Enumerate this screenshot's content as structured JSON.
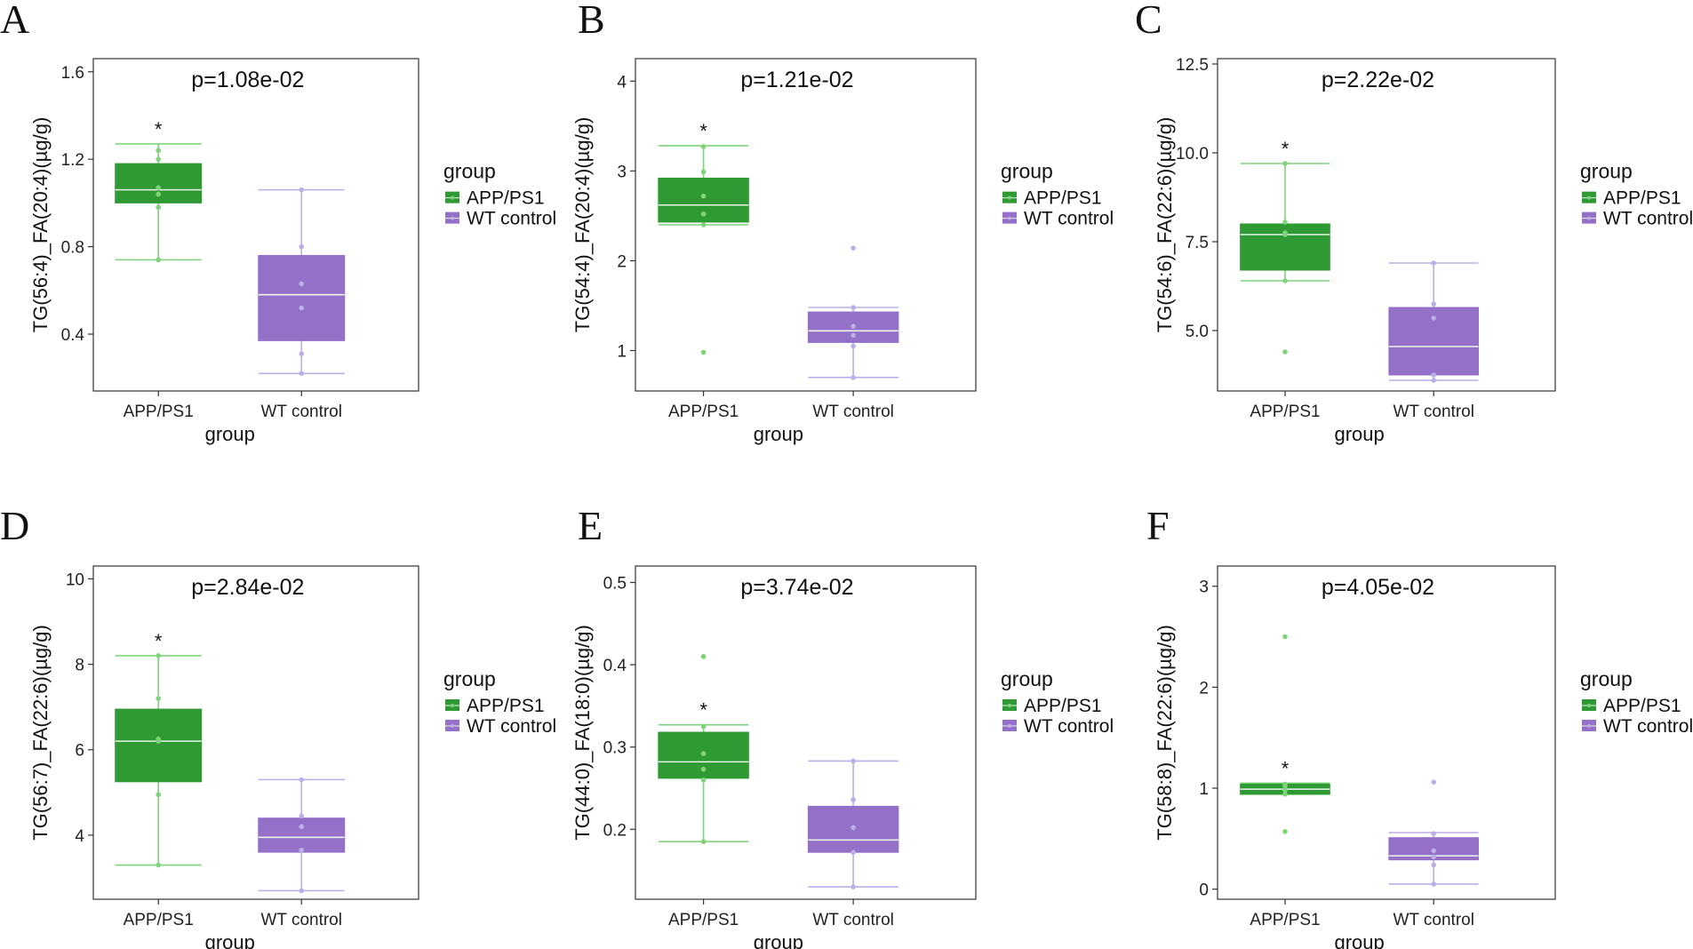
{
  "figure": {
    "colors": {
      "app_fill": "#2f9a33",
      "app_line": "#7fd47b",
      "wt_fill": "#9470c9",
      "wt_line": "#bcaee6",
      "median_line": "#e8f5e8",
      "frame": "#333333"
    }
  },
  "chart_data": [
    {
      "panel": "A",
      "type": "box",
      "title": "p=1.08e-02",
      "ylabel": "TG(56:4)_FA(20:4)(µg/g)",
      "xlabel": "group",
      "categories": [
        "APP/PS1",
        "WT control"
      ],
      "ylim": [
        0.14,
        1.66
      ],
      "yticks": [
        0.4,
        0.8,
        1.2,
        1.6
      ],
      "ytick_labels": [
        "0.4",
        "0.8",
        "1.2",
        "1.6"
      ],
      "legend": {
        "title": "group",
        "entries": [
          "APP/PS1",
          "WT control"
        ]
      },
      "significance": "*",
      "series": [
        {
          "name": "APP/PS1",
          "min": 0.74,
          "q1": 1.0,
          "median": 1.06,
          "q3": 1.18,
          "max": 1.27,
          "points": [
            0.74,
            0.98,
            1.04,
            1.07,
            1.2,
            1.24
          ]
        },
        {
          "name": "WT control",
          "min": 0.22,
          "q1": 0.37,
          "median": 0.58,
          "q3": 0.76,
          "max": 1.06,
          "points": [
            0.22,
            0.31,
            0.52,
            0.63,
            0.8,
            1.06
          ]
        }
      ]
    },
    {
      "panel": "B",
      "type": "box",
      "title": "p=1.21e-02",
      "ylabel": "TG(54:4)_FA(20:4)(µg/g)",
      "xlabel": "group",
      "categories": [
        "APP/PS1",
        "WT control"
      ],
      "ylim": [
        0.55,
        4.25
      ],
      "yticks": [
        1,
        2,
        3,
        4
      ],
      "ytick_labels": [
        "1",
        "2",
        "3",
        "4"
      ],
      "legend": {
        "title": "group",
        "entries": [
          "APP/PS1",
          "WT control"
        ]
      },
      "significance": "*",
      "series": [
        {
          "name": "APP/PS1",
          "min": 2.4,
          "q1": 2.43,
          "median": 2.62,
          "q3": 2.92,
          "max": 3.28,
          "points": [
            0.98,
            2.4,
            2.52,
            2.72,
            2.99,
            3.27
          ]
        },
        {
          "name": "WT control",
          "min": 0.7,
          "q1": 1.09,
          "median": 1.22,
          "q3": 1.43,
          "max": 1.48,
          "points": [
            0.7,
            1.05,
            1.17,
            1.27,
            1.48,
            2.14
          ]
        }
      ]
    },
    {
      "panel": "C",
      "type": "box",
      "title": "p=2.22e-02",
      "ylabel": "TG(54:6)_FA(22:6)(µg/g)",
      "xlabel": "group",
      "categories": [
        "APP/PS1",
        "WT control"
      ],
      "ylim": [
        3.3,
        12.65
      ],
      "yticks": [
        5.0,
        7.5,
        10.0,
        12.5
      ],
      "ytick_labels": [
        "5.0",
        "7.5",
        "10.0",
        "12.5"
      ],
      "legend": {
        "title": "group",
        "entries": [
          "APP/PS1",
          "WT control"
        ]
      },
      "significance": "*",
      "series": [
        {
          "name": "APP/PS1",
          "min": 6.4,
          "q1": 6.7,
          "median": 7.7,
          "q3": 8.0,
          "max": 9.7,
          "points": [
            4.4,
            6.4,
            7.7,
            7.75,
            8.05,
            9.7
          ]
        },
        {
          "name": "WT control",
          "min": 3.6,
          "q1": 3.75,
          "median": 4.55,
          "q3": 5.65,
          "max": 6.9,
          "points": [
            3.6,
            3.75,
            5.35,
            5.75,
            6.9
          ]
        }
      ]
    },
    {
      "panel": "D",
      "type": "box",
      "title": "p=2.84e-02",
      "ylabel": "TG(56:7)_FA(22:6)(µg/g)",
      "xlabel": "group",
      "categories": [
        "APP/PS1",
        "WT control"
      ],
      "ylim": [
        2.5,
        10.3
      ],
      "yticks": [
        4,
        6,
        8,
        10
      ],
      "ytick_labels": [
        "4",
        "6",
        "8",
        "10"
      ],
      "legend": {
        "title": "group",
        "entries": [
          "APP/PS1",
          "WT control"
        ]
      },
      "significance": "*",
      "series": [
        {
          "name": "APP/PS1",
          "min": 3.3,
          "q1": 5.25,
          "median": 6.2,
          "q3": 6.95,
          "max": 8.2,
          "points": [
            3.3,
            4.95,
            6.2,
            6.25,
            7.2,
            8.2
          ]
        },
        {
          "name": "WT control",
          "min": 2.7,
          "q1": 3.6,
          "median": 3.95,
          "q3": 4.4,
          "max": 5.3,
          "points": [
            2.7,
            3.65,
            4.2,
            4.45,
            5.3
          ]
        }
      ]
    },
    {
      "panel": "E",
      "type": "box",
      "title": "p=3.74e-02",
      "ylabel": "TG(44:0)_FA(18:0)(µg/g)",
      "xlabel": "group",
      "categories": [
        "APP/PS1",
        "WT control"
      ],
      "ylim": [
        0.115,
        0.52
      ],
      "yticks": [
        0.2,
        0.3,
        0.4,
        0.5
      ],
      "ytick_labels": [
        "0.2",
        "0.3",
        "0.4",
        "0.5"
      ],
      "legend": {
        "title": "group",
        "entries": [
          "APP/PS1",
          "WT control"
        ]
      },
      "significance": "*",
      "series": [
        {
          "name": "APP/PS1",
          "min": 0.185,
          "q1": 0.262,
          "median": 0.282,
          "q3": 0.318,
          "max": 0.327,
          "points": [
            0.185,
            0.26,
            0.273,
            0.292,
            0.325,
            0.41
          ]
        },
        {
          "name": "WT control",
          "min": 0.13,
          "q1": 0.172,
          "median": 0.187,
          "q3": 0.228,
          "max": 0.283,
          "points": [
            0.13,
            0.172,
            0.202,
            0.236,
            0.283
          ]
        }
      ]
    },
    {
      "panel": "F",
      "type": "box",
      "title": "p=4.05e-02",
      "ylabel": "TG(58:8)_FA(22:6)(µg/g)",
      "xlabel": "group",
      "categories": [
        "APP/PS1",
        "WT control"
      ],
      "ylim": [
        -0.1,
        3.2
      ],
      "yticks": [
        0,
        1,
        2,
        3
      ],
      "ytick_labels": [
        "0",
        "1",
        "2",
        "3"
      ],
      "legend": {
        "title": "group",
        "entries": [
          "APP/PS1",
          "WT control"
        ]
      },
      "significance": "*",
      "series": [
        {
          "name": "APP/PS1",
          "min": 0.94,
          "q1": 0.94,
          "median": 0.99,
          "q3": 1.04,
          "max": 1.05,
          "points": [
            0.57,
            0.94,
            0.98,
            1.02,
            1.04,
            2.5
          ]
        },
        {
          "name": "WT control",
          "min": 0.05,
          "q1": 0.29,
          "median": 0.33,
          "q3": 0.51,
          "max": 0.56,
          "points": [
            0.05,
            0.24,
            0.32,
            0.38,
            0.55,
            1.06
          ]
        }
      ]
    }
  ]
}
